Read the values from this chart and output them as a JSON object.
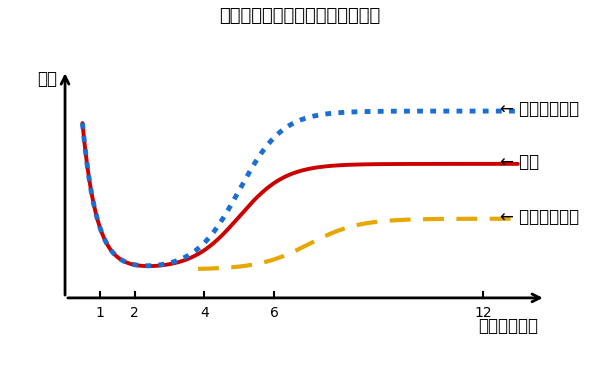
{
  "title": "エラボトックスの効果のイメージ",
  "xlabel": "期間（ヶ月）",
  "ylabel": "厚み",
  "x_ticks": [
    1,
    2,
    4,
    6,
    12
  ],
  "background_color": "#ffffff",
  "title_fontsize": 13,
  "label_fontsize": 12,
  "annotation_fontsize": 12,
  "tick_fontsize": 10,
  "line_normal_color": "#cc0000",
  "line_easy_recover_color": "#1a6fd4",
  "line_easy_keep_color": "#e6a800",
  "annotation_normal": "← 通常",
  "annotation_easy_recover": "← 戻りやすい人",
  "annotation_easy_keep": "← 持ちやすい人"
}
